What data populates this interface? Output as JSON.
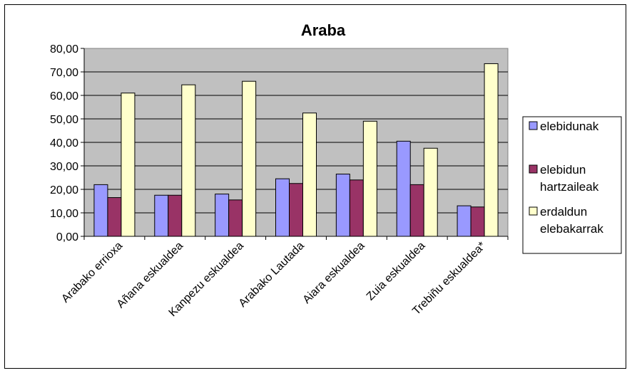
{
  "chart_data": {
    "type": "bar",
    "title": "Araba",
    "categories": [
      "Arabako errioxa",
      "Añana eskualdea",
      "Kanpezu eskualdea",
      "Arabako Lautada",
      "Aiara eskualdea",
      "Zuia eskualdea",
      "Trebiñu eskualdea*"
    ],
    "series": [
      {
        "name": "elebidunak",
        "color": "#9999FF",
        "values": [
          22.0,
          17.5,
          18.0,
          24.5,
          26.5,
          40.5,
          13.0
        ]
      },
      {
        "name": "elebidun hartzaileak",
        "color": "#993366",
        "values": [
          16.5,
          17.5,
          15.5,
          22.5,
          24.0,
          22.0,
          12.5
        ]
      },
      {
        "name": "erdaldun elebakarrak",
        "color": "#FFFFCC",
        "values": [
          61.0,
          64.5,
          66.0,
          52.5,
          49.0,
          37.5,
          73.5
        ]
      }
    ],
    "yticks": [
      "0,00",
      "10,00",
      "20,00",
      "30,00",
      "40,00",
      "50,00",
      "60,00",
      "70,00",
      "80,00"
    ],
    "ylim": [
      0,
      80
    ],
    "grid": true,
    "plot_background": "#C0C0C0",
    "legend_position": "right",
    "legend_lines": [
      [
        "elebidunak"
      ],
      [
        "elebidun",
        "hartzaileak"
      ],
      [
        "erdaldun",
        "elebakarrak"
      ]
    ]
  }
}
